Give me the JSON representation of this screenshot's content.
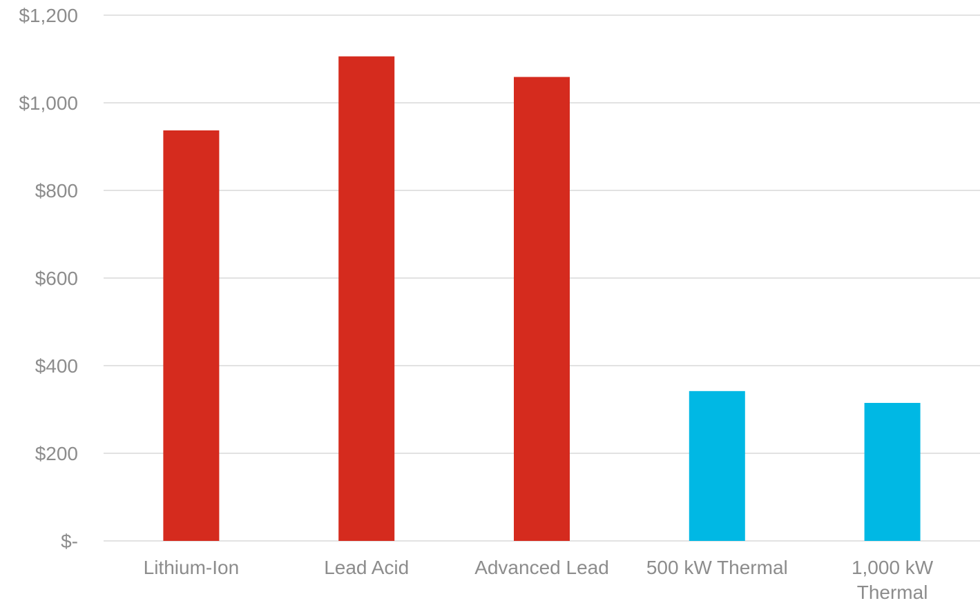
{
  "chart_data": {
    "type": "bar",
    "title": "",
    "xlabel": "",
    "ylabel": "",
    "categories": [
      "Lithium-Ion",
      "Lead Acid",
      "Advanced Lead",
      "500 kW Thermal",
      "1,000 kW Thermal"
    ],
    "category_label_lines": [
      [
        "Lithium-Ion"
      ],
      [
        "Lead Acid"
      ],
      [
        "Advanced Lead"
      ],
      [
        "500 kW Thermal"
      ],
      [
        "1,000 kW",
        "Thermal"
      ]
    ],
    "values": [
      937,
      1106,
      1059,
      342,
      315
    ],
    "bar_colors": [
      "#d52b1e",
      "#d52b1e",
      "#d52b1e",
      "#00b8e4",
      "#00b8e4"
    ],
    "ylim": [
      0,
      1200
    ],
    "yticks": [
      0,
      200,
      400,
      600,
      800,
      1000,
      1200
    ],
    "ytick_labels": [
      "$-",
      "$200",
      "$400",
      "$600",
      "$800",
      "$1,000",
      "$1,200"
    ],
    "grid": true,
    "legend": "none"
  }
}
